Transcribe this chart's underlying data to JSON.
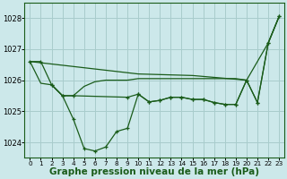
{
  "background_color": "#cce8ea",
  "grid_color": "#a8cccc",
  "line_color": "#1a5c1a",
  "xlabel": "Graphe pression niveau de la mer (hPa)",
  "xlabel_fontsize": 7.5,
  "ylim": [
    1023.5,
    1028.5
  ],
  "xlim": [
    -0.5,
    23.5
  ],
  "yticks": [
    1024,
    1025,
    1026,
    1027,
    1028
  ],
  "jagged_x": [
    0,
    1,
    2,
    3,
    4,
    5,
    6,
    7,
    8,
    9,
    10,
    11,
    12,
    13,
    14,
    15,
    16,
    17,
    18,
    19,
    20,
    21,
    22,
    23
  ],
  "jagged_y": [
    1026.6,
    1026.6,
    1025.85,
    1025.5,
    1024.75,
    1023.8,
    1023.72,
    1023.85,
    1024.35,
    1024.45,
    1025.55,
    1025.3,
    1025.35,
    1025.45,
    1025.45,
    1025.38,
    1025.38,
    1025.28,
    1025.22,
    1025.22,
    1026.0,
    1025.28,
    1027.2,
    1028.05
  ],
  "straight_x": [
    0,
    10,
    15,
    20,
    22,
    23
  ],
  "straight_y": [
    1026.6,
    1026.2,
    1026.15,
    1026.0,
    1027.2,
    1028.05
  ],
  "flat_upper_x": [
    0,
    1,
    2,
    3,
    4,
    5,
    6,
    7,
    8,
    9,
    10,
    11,
    12,
    13,
    14,
    15,
    16,
    17,
    18,
    19,
    20
  ],
  "flat_upper_y": [
    1026.6,
    1025.9,
    1025.85,
    1025.5,
    1025.5,
    1025.8,
    1025.95,
    1026.0,
    1026.0,
    1026.0,
    1026.05,
    1026.05,
    1026.05,
    1026.05,
    1026.05,
    1026.05,
    1026.05,
    1026.05,
    1026.05,
    1026.05,
    1026.0
  ],
  "flat_lower_x": [
    2,
    3,
    4,
    9,
    10,
    11,
    12,
    13,
    14,
    15,
    16,
    17,
    18,
    19,
    20,
    21,
    22,
    23
  ],
  "flat_lower_y": [
    1025.85,
    1025.5,
    1025.5,
    1025.45,
    1025.55,
    1025.3,
    1025.35,
    1025.45,
    1025.45,
    1025.38,
    1025.38,
    1025.28,
    1025.22,
    1025.22,
    1026.0,
    1025.28,
    1027.2,
    1028.05
  ]
}
